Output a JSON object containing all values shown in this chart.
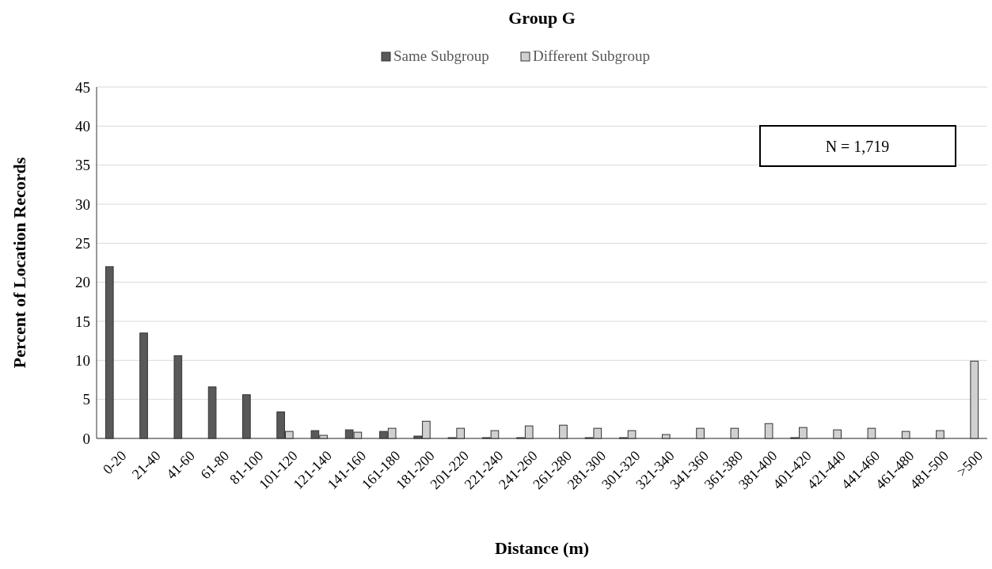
{
  "chart_data": {
    "type": "bar",
    "title": "Group G",
    "xlabel": "Distance (m)",
    "ylabel": "Percent of Location Records",
    "categories": [
      "0-20",
      "21-40",
      "41-60",
      "61-80",
      "81-100",
      "101-120",
      "121-140",
      "141-160",
      "161-180",
      "181-200",
      "201-220",
      "221-240",
      "241-260",
      "261-280",
      "281-300",
      "301-320",
      "321-340",
      "341-360",
      "361-380",
      "381-400",
      "401-420",
      "421-440",
      "441-460",
      "461-480",
      "481-500",
      ">500"
    ],
    "series": [
      {
        "name": "Same Subgroup",
        "color": "#595959",
        "values": [
          22,
          13.5,
          10.6,
          6.6,
          5.6,
          3.4,
          1.0,
          1.1,
          0.9,
          0.3,
          0.1,
          0.1,
          0.1,
          0,
          0.1,
          0.1,
          0,
          0,
          0,
          0,
          0.1,
          0,
          0,
          0,
          0,
          0
        ]
      },
      {
        "name": "Different Subgroup",
        "color": "#d0d0d0",
        "values": [
          0,
          0,
          0,
          0,
          0,
          0.9,
          0.4,
          0.8,
          1.3,
          2.2,
          1.3,
          1.0,
          1.6,
          1.7,
          1.3,
          1.0,
          0.5,
          1.3,
          1.3,
          1.9,
          1.4,
          1.1,
          1.3,
          0.9,
          1.0,
          9.9
        ]
      }
    ],
    "ylim": [
      0,
      45
    ],
    "yticks": [
      0,
      5,
      10,
      15,
      20,
      25,
      30,
      35,
      40,
      45
    ],
    "grid": "y",
    "legend": "top",
    "annotations": [
      "N = 1,719"
    ]
  }
}
